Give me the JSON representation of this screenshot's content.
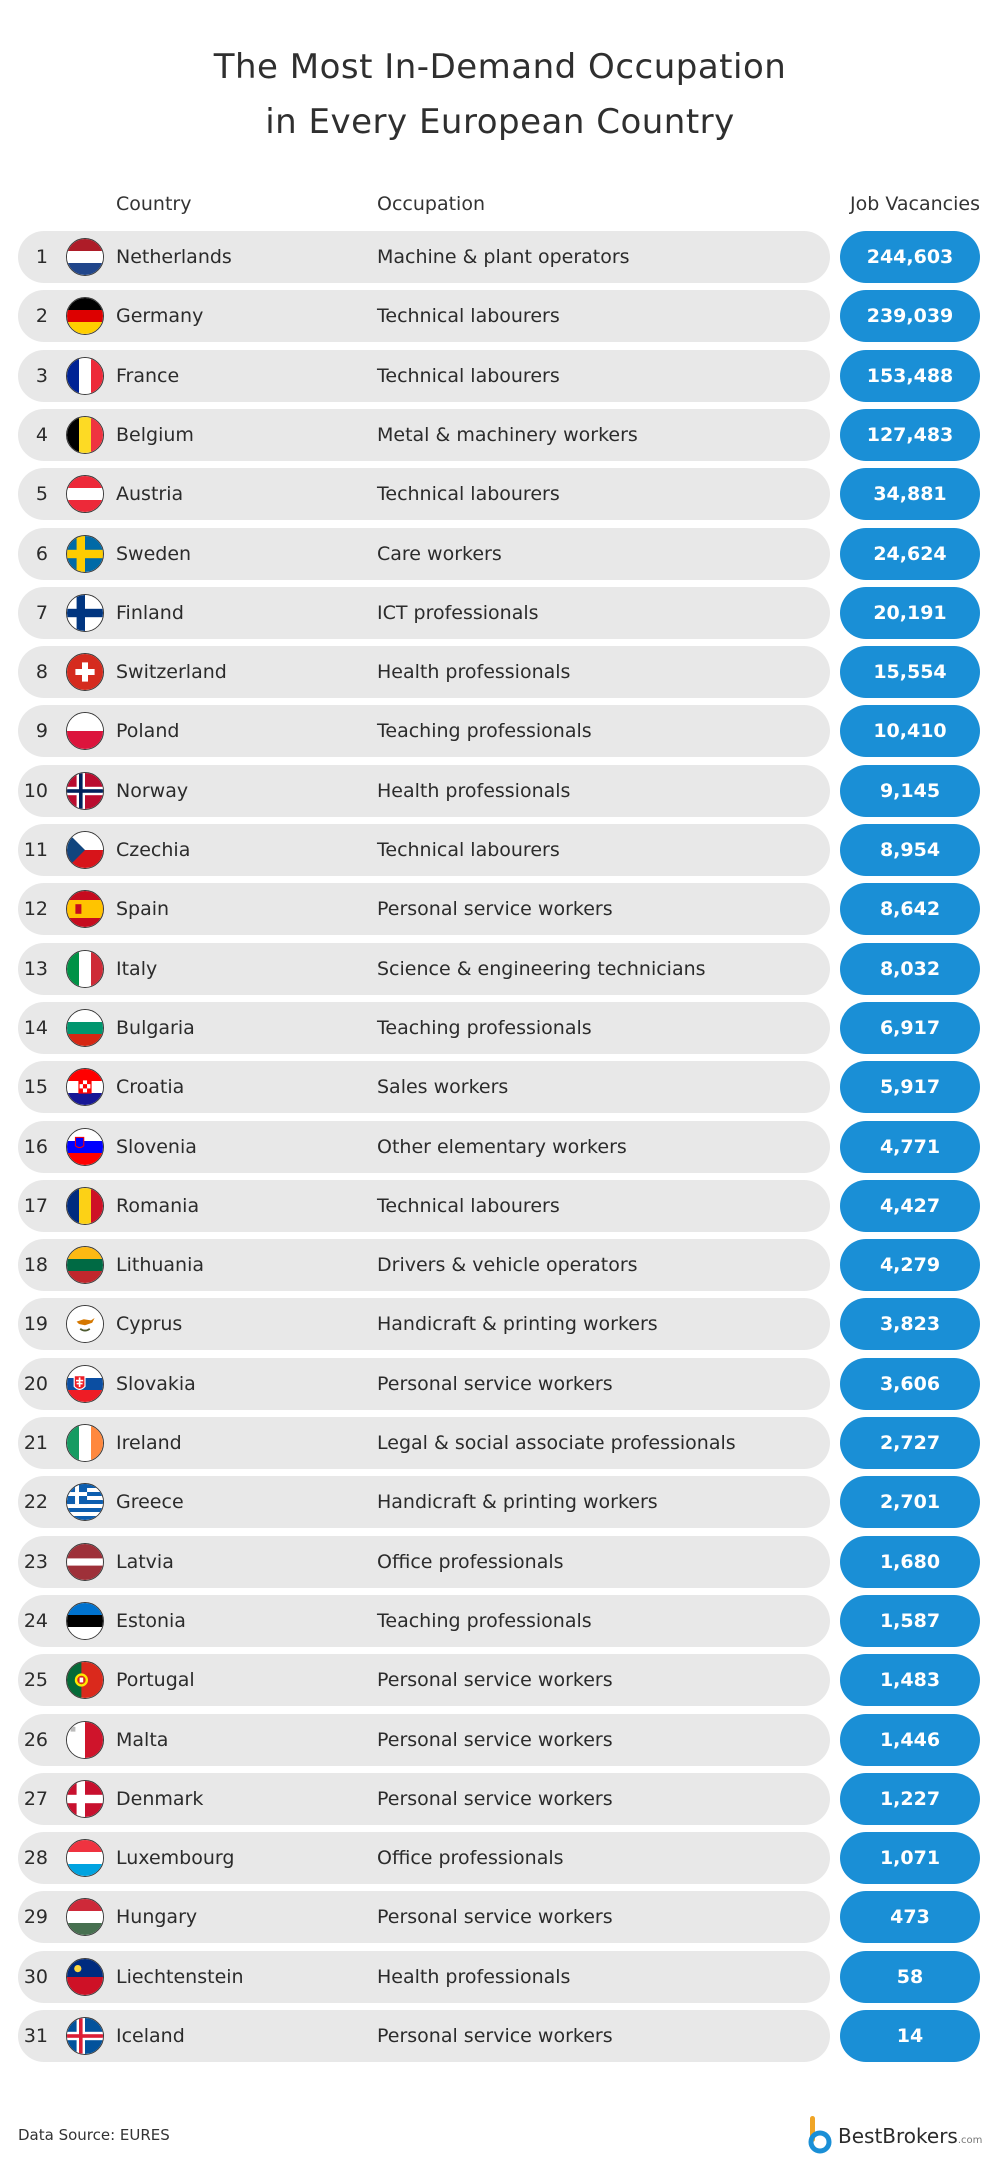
{
  "title_lines": [
    "The Most In-Demand Occupation",
    "in Every European Country"
  ],
  "headers": {
    "country": "Country",
    "occupation": "Occupation",
    "jobs": "Job Vacancies"
  },
  "source": "Data Source: EURES",
  "brand": {
    "name": "BestBrokers",
    "suffix": ".com"
  },
  "colors": {
    "accent": "#1a8fd6",
    "row_bg": "#e8e8e8"
  },
  "rows": [
    {
      "rank": "1",
      "country": "Netherlands",
      "occupation": "Machine & plant operators",
      "vacancies": "244,603",
      "flag": "nl"
    },
    {
      "rank": "2",
      "country": "Germany",
      "occupation": "Technical labourers",
      "vacancies": "239,039",
      "flag": "de"
    },
    {
      "rank": "3",
      "country": "France",
      "occupation": "Technical labourers",
      "vacancies": "153,488",
      "flag": "fr"
    },
    {
      "rank": "4",
      "country": "Belgium",
      "occupation": "Metal & machinery workers",
      "vacancies": "127,483",
      "flag": "be"
    },
    {
      "rank": "5",
      "country": "Austria",
      "occupation": "Technical labourers",
      "vacancies": "34,881",
      "flag": "at"
    },
    {
      "rank": "6",
      "country": "Sweden",
      "occupation": "Care workers",
      "vacancies": "24,624",
      "flag": "se"
    },
    {
      "rank": "7",
      "country": "Finland",
      "occupation": "ICT professionals",
      "vacancies": "20,191",
      "flag": "fi"
    },
    {
      "rank": "8",
      "country": "Switzerland",
      "occupation": "Health professionals",
      "vacancies": "15,554",
      "flag": "ch"
    },
    {
      "rank": "9",
      "country": "Poland",
      "occupation": "Teaching professionals",
      "vacancies": "10,410",
      "flag": "pl"
    },
    {
      "rank": "10",
      "country": "Norway",
      "occupation": "Health professionals",
      "vacancies": "9,145",
      "flag": "no"
    },
    {
      "rank": "11",
      "country": "Czechia",
      "occupation": "Technical labourers",
      "vacancies": "8,954",
      "flag": "cz"
    },
    {
      "rank": "12",
      "country": "Spain",
      "occupation": "Personal service workers",
      "vacancies": "8,642",
      "flag": "es"
    },
    {
      "rank": "13",
      "country": "Italy",
      "occupation": "Science & engineering technicians",
      "vacancies": "8,032",
      "flag": "it"
    },
    {
      "rank": "14",
      "country": "Bulgaria",
      "occupation": "Teaching professionals",
      "vacancies": "6,917",
      "flag": "bg"
    },
    {
      "rank": "15",
      "country": "Croatia",
      "occupation": "Sales workers",
      "vacancies": "5,917",
      "flag": "hr"
    },
    {
      "rank": "16",
      "country": "Slovenia",
      "occupation": "Other elementary workers",
      "vacancies": "4,771",
      "flag": "si"
    },
    {
      "rank": "17",
      "country": "Romania",
      "occupation": "Technical labourers",
      "vacancies": "4,427",
      "flag": "ro"
    },
    {
      "rank": "18",
      "country": "Lithuania",
      "occupation": "Drivers & vehicle operators",
      "vacancies": "4,279",
      "flag": "lt"
    },
    {
      "rank": "19",
      "country": "Cyprus",
      "occupation": "Handicraft & printing workers",
      "vacancies": "3,823",
      "flag": "cy"
    },
    {
      "rank": "20",
      "country": "Slovakia",
      "occupation": "Personal service workers",
      "vacancies": "3,606",
      "flag": "sk"
    },
    {
      "rank": "21",
      "country": "Ireland",
      "occupation": "Legal & social associate professionals",
      "vacancies": "2,727",
      "flag": "ie"
    },
    {
      "rank": "22",
      "country": "Greece",
      "occupation": "Handicraft & printing workers",
      "vacancies": "2,701",
      "flag": "gr"
    },
    {
      "rank": "23",
      "country": "Latvia",
      "occupation": "Office professionals",
      "vacancies": "1,680",
      "flag": "lv"
    },
    {
      "rank": "24",
      "country": "Estonia",
      "occupation": "Teaching professionals",
      "vacancies": "1,587",
      "flag": "ee"
    },
    {
      "rank": "25",
      "country": "Portugal",
      "occupation": "Personal service workers",
      "vacancies": "1,483",
      "flag": "pt"
    },
    {
      "rank": "26",
      "country": "Malta",
      "occupation": "Personal service workers",
      "vacancies": "1,446",
      "flag": "mt"
    },
    {
      "rank": "27",
      "country": "Denmark",
      "occupation": "Personal service workers",
      "vacancies": "1,227",
      "flag": "dk"
    },
    {
      "rank": "28",
      "country": "Luxembourg",
      "occupation": "Office professionals",
      "vacancies": "1,071",
      "flag": "lu"
    },
    {
      "rank": "29",
      "country": "Hungary",
      "occupation": "Personal service workers",
      "vacancies": "473",
      "flag": "hu"
    },
    {
      "rank": "30",
      "country": "Liechtenstein",
      "occupation": "Health professionals",
      "vacancies": "58",
      "flag": "li"
    },
    {
      "rank": "31",
      "country": "Iceland",
      "occupation": "Personal service workers",
      "vacancies": "14",
      "flag": "is"
    }
  ],
  "chart_data": {
    "type": "table",
    "title": "The Most In-Demand Occupation in Every European Country",
    "columns": [
      "Country",
      "Occupation",
      "Job Vacancies"
    ],
    "categories": [
      "Netherlands",
      "Germany",
      "France",
      "Belgium",
      "Austria",
      "Sweden",
      "Finland",
      "Switzerland",
      "Poland",
      "Norway",
      "Czechia",
      "Spain",
      "Italy",
      "Bulgaria",
      "Croatia",
      "Slovenia",
      "Romania",
      "Lithuania",
      "Cyprus",
      "Slovakia",
      "Ireland",
      "Greece",
      "Latvia",
      "Estonia",
      "Portugal",
      "Malta",
      "Denmark",
      "Luxembourg",
      "Hungary",
      "Liechtenstein",
      "Iceland"
    ],
    "values": [
      244603,
      239039,
      153488,
      127483,
      34881,
      24624,
      20191,
      15554,
      10410,
      9145,
      8954,
      8642,
      8032,
      6917,
      5917,
      4771,
      4427,
      4279,
      3823,
      3606,
      2727,
      2701,
      1680,
      1587,
      1483,
      1446,
      1227,
      1071,
      473,
      58,
      14
    ]
  }
}
